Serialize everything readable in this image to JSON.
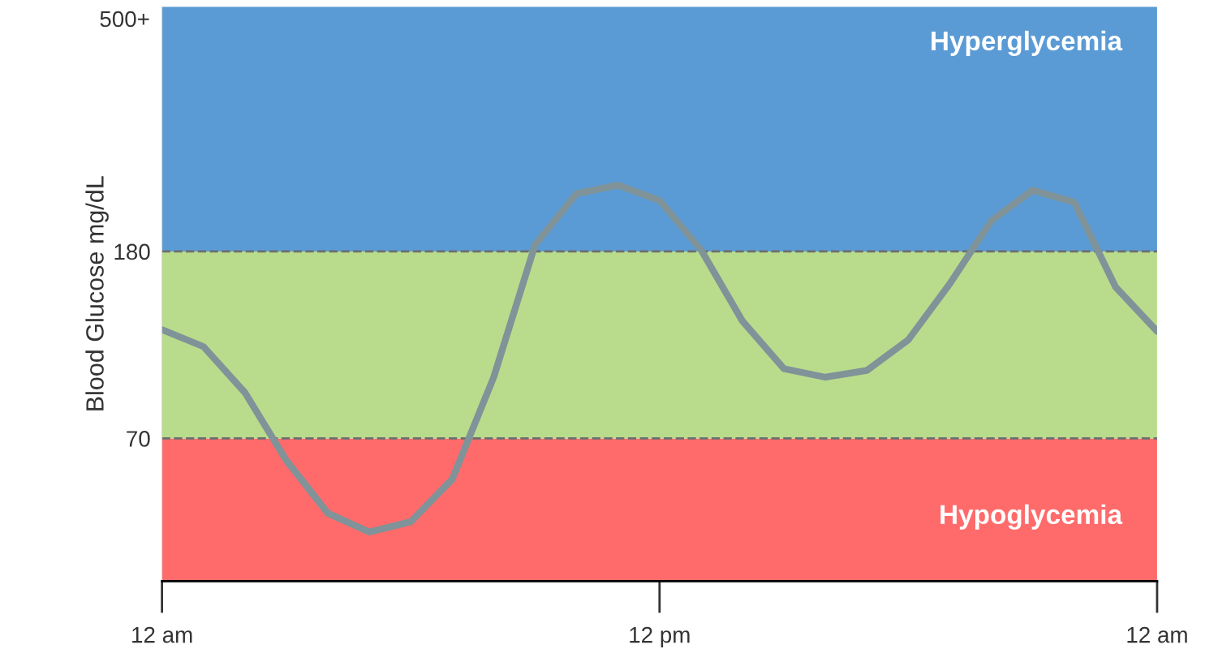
{
  "chart_data": {
    "type": "line",
    "ylabel": "Blood Glucose mg/dL",
    "categories": [
      "12 am",
      null,
      null,
      null,
      null,
      null,
      null,
      null,
      null,
      null,
      null,
      null,
      "12 pm",
      null,
      null,
      null,
      null,
      null,
      null,
      null,
      null,
      null,
      null,
      null,
      "12 am"
    ],
    "series": [
      {
        "color": "#7f9399",
        "values": [
          134,
          124,
          97,
          57,
          26,
          15,
          21,
          46,
          106,
          184,
          214,
          219,
          210,
          181,
          139,
          111,
          106,
          110,
          128,
          161,
          198,
          216,
          209,
          159,
          133
        ]
      }
    ],
    "ylim": [
      -14,
      324
    ],
    "yticks": [
      70,
      180
    ],
    "annotations": [
      "500+"
    ],
    "bands": [
      {
        "axis": "y",
        "from": -14,
        "to": 70,
        "label": "Hypoglycemia",
        "color": "#ff6b6b"
      },
      {
        "axis": "y",
        "from": 70,
        "to": 180,
        "label": null,
        "color": "#b8dc8c"
      },
      {
        "axis": "y",
        "from": 180,
        "to": 324,
        "label": "Hyperglycemia",
        "color": "#5b9bd5"
      }
    ],
    "ref_lines": [
      {
        "axis": "y",
        "value": 70,
        "label": null,
        "color": "#6e6e6e",
        "line_style": "dashed"
      },
      {
        "axis": "y",
        "value": 180,
        "label": null,
        "color": "#6e6e6e",
        "line_style": "dashed"
      }
    ],
    "marker": "none",
    "line_style": "solid"
  }
}
